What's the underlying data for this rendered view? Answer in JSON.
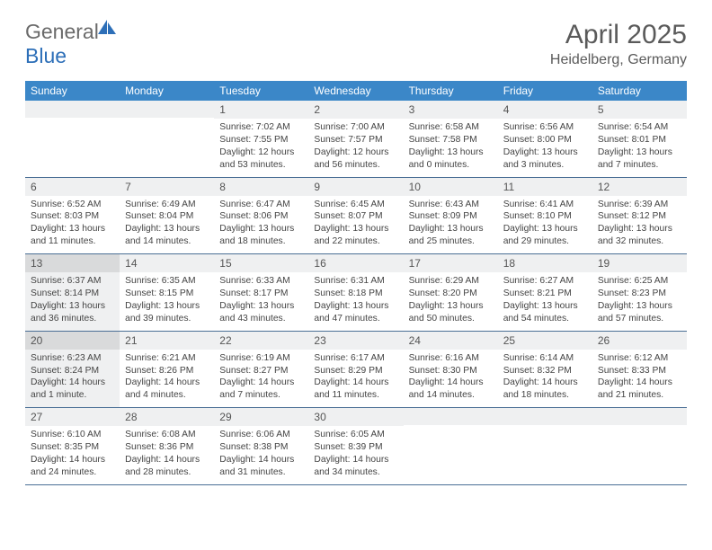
{
  "brand": {
    "word1": "General",
    "word2": "Blue"
  },
  "title": "April 2025",
  "subtitle": "Heidelberg, Germany",
  "colors": {
    "header_bg": "#3b87c8",
    "header_text": "#ffffff",
    "row_border": "#4a6f95",
    "daynum_bg": "#eff0f1",
    "daynum_shaded_bg": "#d9dadb",
    "body_shaded_bg": "#eff0f1",
    "page_bg": "#ffffff",
    "text": "#444444",
    "title_color": "#5a5a5a",
    "logo_gray": "#6a6a6a",
    "logo_blue": "#2d6fb8"
  },
  "day_headers": [
    "Sunday",
    "Monday",
    "Tuesday",
    "Wednesday",
    "Thursday",
    "Friday",
    "Saturday"
  ],
  "weeks": [
    [
      {
        "empty": true
      },
      {
        "empty": true
      },
      {
        "n": "1",
        "sunrise": "Sunrise: 7:02 AM",
        "sunset": "Sunset: 7:55 PM",
        "daylight": "Daylight: 12 hours and 53 minutes."
      },
      {
        "n": "2",
        "sunrise": "Sunrise: 7:00 AM",
        "sunset": "Sunset: 7:57 PM",
        "daylight": "Daylight: 12 hours and 56 minutes."
      },
      {
        "n": "3",
        "sunrise": "Sunrise: 6:58 AM",
        "sunset": "Sunset: 7:58 PM",
        "daylight": "Daylight: 13 hours and 0 minutes."
      },
      {
        "n": "4",
        "sunrise": "Sunrise: 6:56 AM",
        "sunset": "Sunset: 8:00 PM",
        "daylight": "Daylight: 13 hours and 3 minutes."
      },
      {
        "n": "5",
        "sunrise": "Sunrise: 6:54 AM",
        "sunset": "Sunset: 8:01 PM",
        "daylight": "Daylight: 13 hours and 7 minutes."
      }
    ],
    [
      {
        "n": "6",
        "sunrise": "Sunrise: 6:52 AM",
        "sunset": "Sunset: 8:03 PM",
        "daylight": "Daylight: 13 hours and 11 minutes."
      },
      {
        "n": "7",
        "sunrise": "Sunrise: 6:49 AM",
        "sunset": "Sunset: 8:04 PM",
        "daylight": "Daylight: 13 hours and 14 minutes."
      },
      {
        "n": "8",
        "sunrise": "Sunrise: 6:47 AM",
        "sunset": "Sunset: 8:06 PM",
        "daylight": "Daylight: 13 hours and 18 minutes."
      },
      {
        "n": "9",
        "sunrise": "Sunrise: 6:45 AM",
        "sunset": "Sunset: 8:07 PM",
        "daylight": "Daylight: 13 hours and 22 minutes."
      },
      {
        "n": "10",
        "sunrise": "Sunrise: 6:43 AM",
        "sunset": "Sunset: 8:09 PM",
        "daylight": "Daylight: 13 hours and 25 minutes."
      },
      {
        "n": "11",
        "sunrise": "Sunrise: 6:41 AM",
        "sunset": "Sunset: 8:10 PM",
        "daylight": "Daylight: 13 hours and 29 minutes."
      },
      {
        "n": "12",
        "sunrise": "Sunrise: 6:39 AM",
        "sunset": "Sunset: 8:12 PM",
        "daylight": "Daylight: 13 hours and 32 minutes."
      }
    ],
    [
      {
        "n": "13",
        "shaded": true,
        "sunrise": "Sunrise: 6:37 AM",
        "sunset": "Sunset: 8:14 PM",
        "daylight": "Daylight: 13 hours and 36 minutes."
      },
      {
        "n": "14",
        "sunrise": "Sunrise: 6:35 AM",
        "sunset": "Sunset: 8:15 PM",
        "daylight": "Daylight: 13 hours and 39 minutes."
      },
      {
        "n": "15",
        "sunrise": "Sunrise: 6:33 AM",
        "sunset": "Sunset: 8:17 PM",
        "daylight": "Daylight: 13 hours and 43 minutes."
      },
      {
        "n": "16",
        "sunrise": "Sunrise: 6:31 AM",
        "sunset": "Sunset: 8:18 PM",
        "daylight": "Daylight: 13 hours and 47 minutes."
      },
      {
        "n": "17",
        "sunrise": "Sunrise: 6:29 AM",
        "sunset": "Sunset: 8:20 PM",
        "daylight": "Daylight: 13 hours and 50 minutes."
      },
      {
        "n": "18",
        "sunrise": "Sunrise: 6:27 AM",
        "sunset": "Sunset: 8:21 PM",
        "daylight": "Daylight: 13 hours and 54 minutes."
      },
      {
        "n": "19",
        "sunrise": "Sunrise: 6:25 AM",
        "sunset": "Sunset: 8:23 PM",
        "daylight": "Daylight: 13 hours and 57 minutes."
      }
    ],
    [
      {
        "n": "20",
        "shaded": true,
        "sunrise": "Sunrise: 6:23 AM",
        "sunset": "Sunset: 8:24 PM",
        "daylight": "Daylight: 14 hours and 1 minute."
      },
      {
        "n": "21",
        "sunrise": "Sunrise: 6:21 AM",
        "sunset": "Sunset: 8:26 PM",
        "daylight": "Daylight: 14 hours and 4 minutes."
      },
      {
        "n": "22",
        "sunrise": "Sunrise: 6:19 AM",
        "sunset": "Sunset: 8:27 PM",
        "daylight": "Daylight: 14 hours and 7 minutes."
      },
      {
        "n": "23",
        "sunrise": "Sunrise: 6:17 AM",
        "sunset": "Sunset: 8:29 PM",
        "daylight": "Daylight: 14 hours and 11 minutes."
      },
      {
        "n": "24",
        "sunrise": "Sunrise: 6:16 AM",
        "sunset": "Sunset: 8:30 PM",
        "daylight": "Daylight: 14 hours and 14 minutes."
      },
      {
        "n": "25",
        "sunrise": "Sunrise: 6:14 AM",
        "sunset": "Sunset: 8:32 PM",
        "daylight": "Daylight: 14 hours and 18 minutes."
      },
      {
        "n": "26",
        "sunrise": "Sunrise: 6:12 AM",
        "sunset": "Sunset: 8:33 PM",
        "daylight": "Daylight: 14 hours and 21 minutes."
      }
    ],
    [
      {
        "n": "27",
        "sunrise": "Sunrise: 6:10 AM",
        "sunset": "Sunset: 8:35 PM",
        "daylight": "Daylight: 14 hours and 24 minutes."
      },
      {
        "n": "28",
        "sunrise": "Sunrise: 6:08 AM",
        "sunset": "Sunset: 8:36 PM",
        "daylight": "Daylight: 14 hours and 28 minutes."
      },
      {
        "n": "29",
        "sunrise": "Sunrise: 6:06 AM",
        "sunset": "Sunset: 8:38 PM",
        "daylight": "Daylight: 14 hours and 31 minutes."
      },
      {
        "n": "30",
        "sunrise": "Sunrise: 6:05 AM",
        "sunset": "Sunset: 8:39 PM",
        "daylight": "Daylight: 14 hours and 34 minutes."
      },
      {
        "empty": true
      },
      {
        "empty": true
      },
      {
        "empty": true
      }
    ]
  ]
}
